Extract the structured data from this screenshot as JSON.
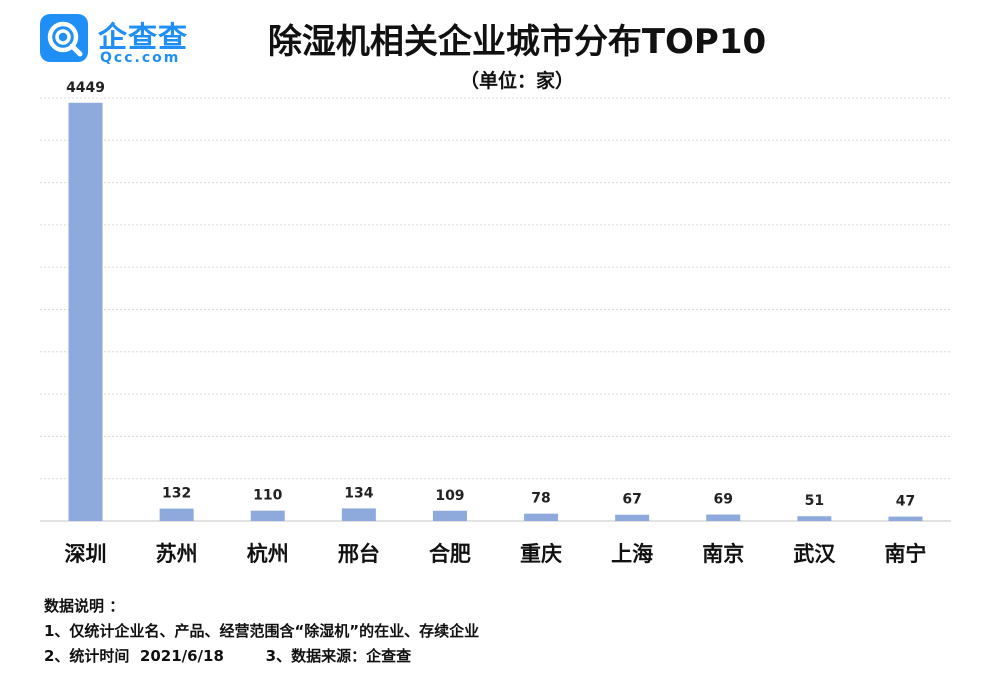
{
  "logo": {
    "name": "企查查",
    "domain": "Qcc.com"
  },
  "chart_data": {
    "type": "bar",
    "title": "除湿机相关企业城市分布TOP10",
    "subtitle": "（单位：家）",
    "categories": [
      "深圳",
      "苏州",
      "杭州",
      "邢台",
      "合肥",
      "重庆",
      "上海",
      "南京",
      "武汉",
      "南宁"
    ],
    "values": [
      4449,
      132,
      110,
      134,
      109,
      78,
      67,
      69,
      51,
      47
    ],
    "ylim": [
      0,
      4500
    ],
    "grid": true,
    "bar_color": "#8eaadc"
  },
  "notes": {
    "heading": "数据说明 ：",
    "line1": "1、仅统计企业名、产品、经营范围含“除湿机”的在业、存续企业",
    "line2": "2、统计时间  2021/6/18        3、数据来源：企查查"
  }
}
